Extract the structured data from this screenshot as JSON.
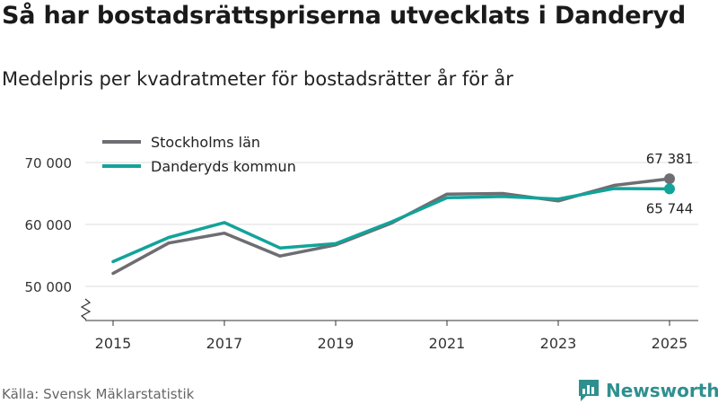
{
  "title": "Så har bostadsrättspriserna utvecklats i Danderyd",
  "subtitle": "Medelpris per kvadratmeter för bostadsrätter år för år",
  "source": "Källa: Svensk Mäklarstatistik",
  "brand": "Newsworthy",
  "colors": {
    "stockholm": "#6e6d72",
    "danderyd": "#12a39a",
    "grid": "#dddddd",
    "axis": "#333333",
    "brand": "#2f8f8f"
  },
  "chart_data": {
    "type": "line",
    "title": "Så har bostadsrättspriserna utvecklats i Danderyd",
    "subtitle": "Medelpris per kvadratmeter för bostadsrätter år för år",
    "xlabel": "",
    "ylabel": "",
    "x": [
      2015,
      2016,
      2017,
      2018,
      2019,
      2020,
      2021,
      2022,
      2023,
      2024,
      2025
    ],
    "xticks": [
      2015,
      2017,
      2019,
      2021,
      2023,
      2025
    ],
    "xtick_labels": [
      "2015",
      "2017",
      "2019",
      "2021",
      "2023",
      "2025"
    ],
    "yticks": [
      50000,
      60000,
      70000
    ],
    "ytick_labels": [
      "50 000",
      "60 000",
      "70 000"
    ],
    "ylim": [
      45000,
      72000
    ],
    "grid": true,
    "legend_position": "top-left",
    "series": [
      {
        "name": "Stockholms län",
        "values": [
          52100,
          57000,
          58600,
          54900,
          56700,
          60200,
          64900,
          65000,
          63800,
          66300,
          67381
        ],
        "end_label": "67 381"
      },
      {
        "name": "Danderyds kommun",
        "values": [
          54000,
          57900,
          60300,
          56200,
          56900,
          60400,
          64300,
          64500,
          64100,
          65800,
          65744
        ],
        "end_label": "65 744"
      }
    ]
  }
}
